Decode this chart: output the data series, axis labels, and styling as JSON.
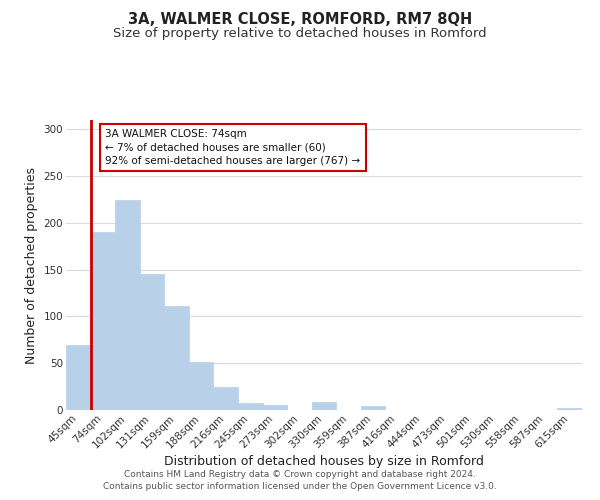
{
  "title": "3A, WALMER CLOSE, ROMFORD, RM7 8QH",
  "subtitle": "Size of property relative to detached houses in Romford",
  "xlabel": "Distribution of detached houses by size in Romford",
  "ylabel": "Number of detached properties",
  "bar_labels": [
    "45sqm",
    "74sqm",
    "102sqm",
    "131sqm",
    "159sqm",
    "188sqm",
    "216sqm",
    "245sqm",
    "273sqm",
    "302sqm",
    "330sqm",
    "359sqm",
    "387sqm",
    "416sqm",
    "444sqm",
    "473sqm",
    "501sqm",
    "530sqm",
    "558sqm",
    "587sqm",
    "615sqm"
  ],
  "bar_values": [
    70,
    190,
    225,
    145,
    111,
    51,
    25,
    8,
    5,
    0,
    9,
    0,
    4,
    0,
    0,
    0,
    0,
    0,
    0,
    0,
    2
  ],
  "bar_color": "#b8d0e8",
  "highlight_bar_index": 1,
  "highlight_color": "#cc0000",
  "ylim": [
    0,
    310
  ],
  "yticks": [
    0,
    50,
    100,
    150,
    200,
    250,
    300
  ],
  "annotation_title": "3A WALMER CLOSE: 74sqm",
  "annotation_line1": "← 7% of detached houses are smaller (60)",
  "annotation_line2": "92% of semi-detached houses are larger (767) →",
  "annotation_box_color": "#ffffff",
  "annotation_box_edge": "#cc0000",
  "footer_line1": "Contains HM Land Registry data © Crown copyright and database right 2024.",
  "footer_line2": "Contains public sector information licensed under the Open Government Licence v3.0.",
  "background_color": "#ffffff",
  "grid_color": "#d0dce8",
  "title_fontsize": 10.5,
  "subtitle_fontsize": 9.5,
  "axis_label_fontsize": 9,
  "tick_fontsize": 7.5,
  "footer_fontsize": 6.5
}
